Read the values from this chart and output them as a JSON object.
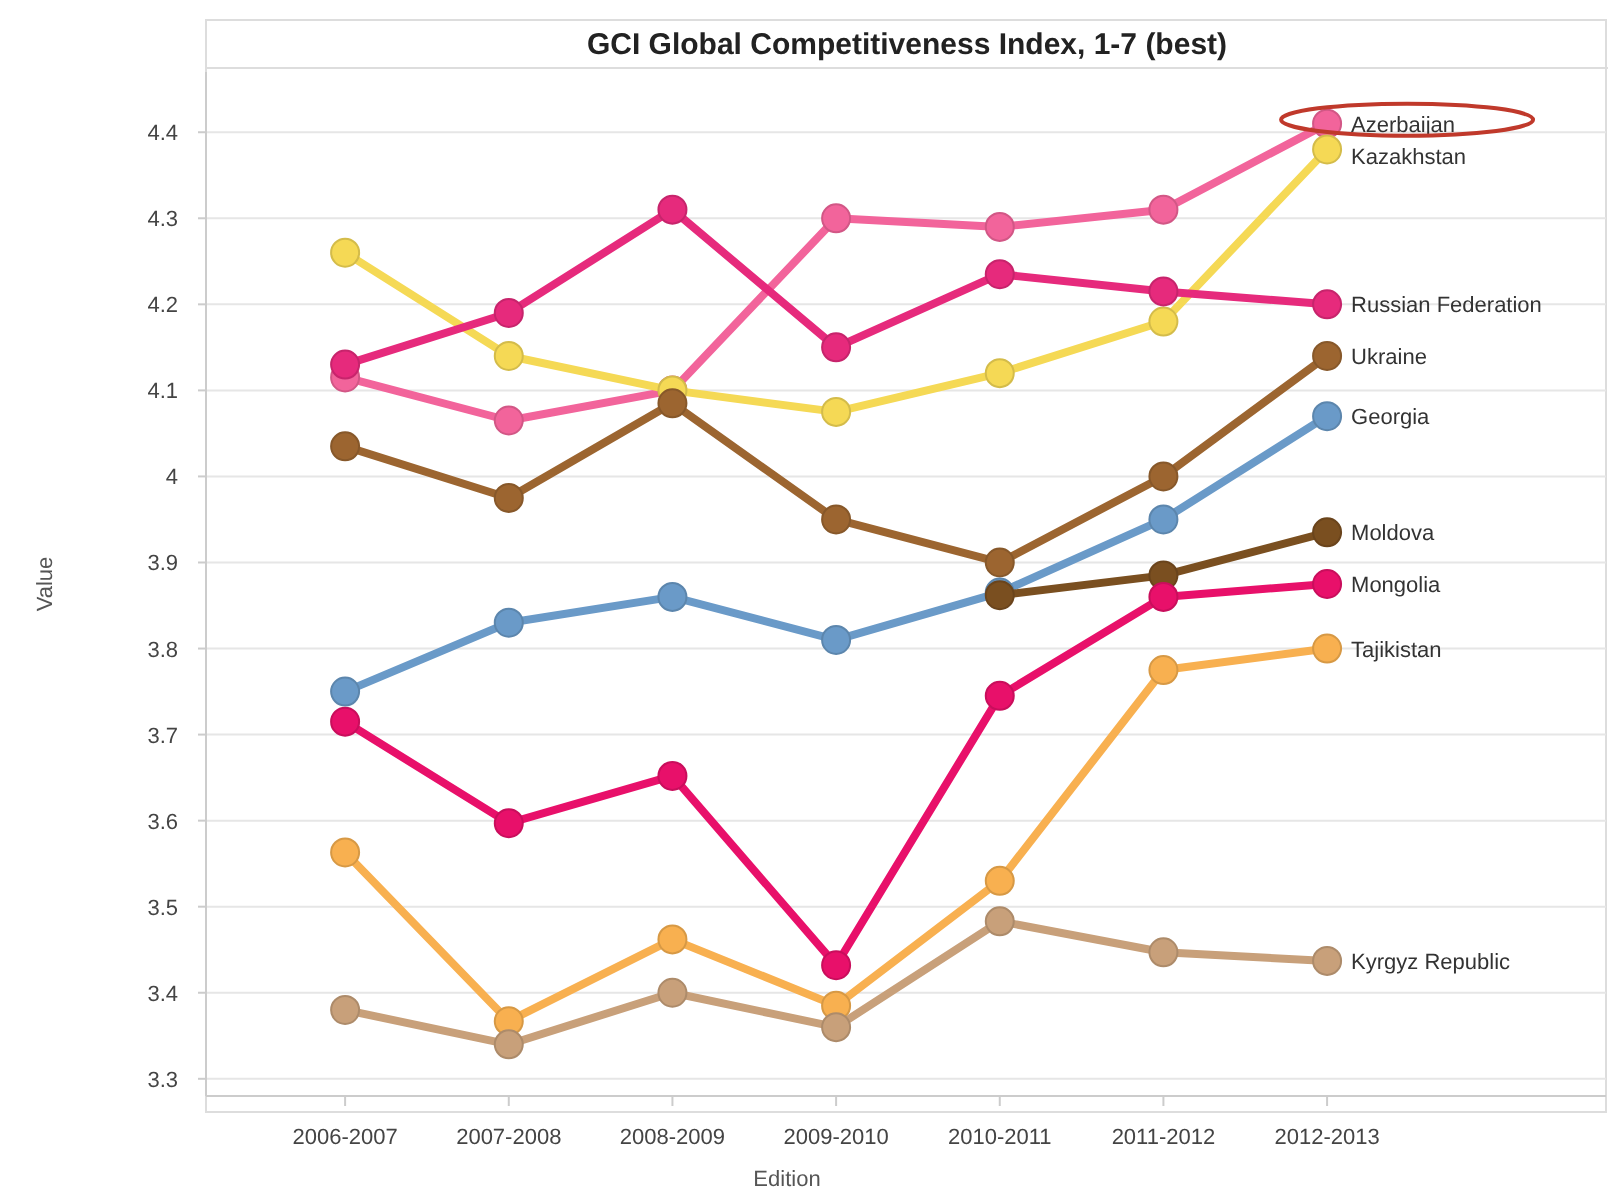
{
  "chart_data": {
    "type": "line",
    "title": "GCI Global Competitiveness Index, 1-7 (best)",
    "xlabel": "Edition",
    "ylabel": "Value",
    "categories": [
      "2006-2007",
      "2007-2008",
      "2008-2009",
      "2009-2010",
      "2010-2011",
      "2011-2012",
      "2012-2013"
    ],
    "ylim": [
      3.28,
      4.47
    ],
    "yticks": [
      3.3,
      3.4,
      3.5,
      3.6,
      3.7,
      3.8,
      3.9,
      {
        "value": 4,
        "label": "4"
      },
      4.1,
      4.2,
      4.3,
      4.4
    ],
    "grid": "y",
    "legend": false,
    "marker": "circle",
    "line_style": "solid",
    "series": [
      {
        "name": "Azerbaijan",
        "color": "#f2649b",
        "values": [
          4.115,
          4.065,
          4.1,
          4.3,
          4.29,
          4.31,
          4.41
        ]
      },
      {
        "name": "Kazakhstan",
        "color": "#f5d955",
        "values": [
          4.26,
          4.14,
          4.1,
          4.075,
          4.12,
          4.18,
          4.38
        ]
      },
      {
        "name": "Russian Federation",
        "color": "#e62a7c",
        "values": [
          4.13,
          4.19,
          4.31,
          4.15,
          4.235,
          4.215,
          4.2
        ]
      },
      {
        "name": "Ukraine",
        "color": "#9c6530",
        "values": [
          4.035,
          3.975,
          4.085,
          3.95,
          3.9,
          4.0,
          4.14
        ]
      },
      {
        "name": "Georgia",
        "color": "#6a9ac8",
        "values": [
          3.75,
          3.83,
          3.86,
          3.81,
          3.865,
          3.95,
          4.07
        ]
      },
      {
        "name": "Moldova",
        "color": "#7a4f20",
        "values": [
          null,
          null,
          null,
          null,
          3.862,
          3.885,
          3.935
        ]
      },
      {
        "name": "Mongolia",
        "color": "#e8106a",
        "values": [
          3.715,
          3.597,
          3.652,
          3.432,
          3.745,
          3.86,
          3.875
        ]
      },
      {
        "name": "Tajikistan",
        "color": "#f8b050",
        "values": [
          3.563,
          3.367,
          3.462,
          3.385,
          3.53,
          3.775,
          3.8
        ]
      },
      {
        "name": "Kyrgyz Republic",
        "color": "#c8a07a",
        "values": [
          3.38,
          3.34,
          3.4,
          3.36,
          3.483,
          3.447,
          3.437
        ]
      }
    ]
  }
}
